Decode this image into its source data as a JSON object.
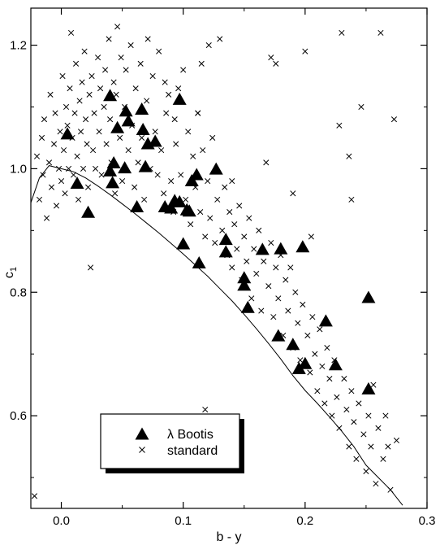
{
  "chart_data": {
    "type": "scatter",
    "xlabel": "b - y",
    "ylabel": "c",
    "ylabel_subscript": "1",
    "xlim": [
      -0.025,
      0.3
    ],
    "ylim": [
      0.45,
      1.26
    ],
    "x_ticks": [
      0.0,
      0.1,
      0.2,
      0.3
    ],
    "x_tick_labels": [
      "0.0",
      "0.1",
      "0.2",
      "0.3"
    ],
    "y_ticks": [
      0.6,
      0.8,
      1.0,
      1.2
    ],
    "y_tick_labels": [
      "0.6",
      "0.8",
      "1.0",
      "1.2"
    ],
    "grid": false,
    "legend_position": "bottom-left",
    "series": [
      {
        "name": "λ Bootis",
        "marker": "triangle",
        "color": "#000000",
        "points": [
          [
            0.005,
            1.055
          ],
          [
            0.013,
            0.975
          ],
          [
            0.022,
            0.928
          ],
          [
            0.04,
            1.117
          ],
          [
            0.04,
            0.995
          ],
          [
            0.042,
            0.976
          ],
          [
            0.043,
            1.008
          ],
          [
            0.046,
            1.065
          ],
          [
            0.052,
            1.0
          ],
          [
            0.053,
            1.092
          ],
          [
            0.055,
            1.076
          ],
          [
            0.062,
            0.937
          ],
          [
            0.066,
            1.095
          ],
          [
            0.067,
            1.062
          ],
          [
            0.069,
            1.002
          ],
          [
            0.071,
            1.039
          ],
          [
            0.077,
            1.043
          ],
          [
            0.085,
            0.937
          ],
          [
            0.09,
            0.935
          ],
          [
            0.093,
            0.947
          ],
          [
            0.097,
            0.945
          ],
          [
            0.097,
            1.111
          ],
          [
            0.1,
            0.877
          ],
          [
            0.103,
            0.932
          ],
          [
            0.105,
            0.93
          ],
          [
            0.107,
            0.979
          ],
          [
            0.111,
            0.989
          ],
          [
            0.113,
            0.846
          ],
          [
            0.127,
            0.998
          ],
          [
            0.135,
            0.884
          ],
          [
            0.135,
            0.864
          ],
          [
            0.15,
            0.822
          ],
          [
            0.15,
            0.81
          ],
          [
            0.153,
            0.774
          ],
          [
            0.165,
            0.868
          ],
          [
            0.178,
            0.728
          ],
          [
            0.18,
            0.869
          ],
          [
            0.19,
            0.714
          ],
          [
            0.195,
            0.675
          ],
          [
            0.198,
            0.872
          ],
          [
            0.2,
            0.683
          ],
          [
            0.217,
            0.752
          ],
          [
            0.225,
            0.681
          ],
          [
            0.252,
            0.79
          ],
          [
            0.252,
            0.642
          ]
        ]
      },
      {
        "name": "standard",
        "marker": "x",
        "color": "#000000",
        "points": [
          [
            -0.022,
            0.47
          ],
          [
            -0.02,
            1.02
          ],
          [
            -0.018,
            0.95
          ],
          [
            -0.016,
            1.05
          ],
          [
            -0.015,
            0.99
          ],
          [
            -0.014,
            1.08
          ],
          [
            -0.012,
            0.92
          ],
          [
            -0.01,
            1.01
          ],
          [
            -0.009,
            1.12
          ],
          [
            -0.008,
            0.97
          ],
          [
            -0.006,
            1.04
          ],
          [
            -0.005,
            1.09
          ],
          [
            -0.004,
            0.94
          ],
          [
            -0.002,
            1.0
          ],
          [
            -0.001,
            1.06
          ],
          [
            0.0,
            0.98
          ],
          [
            0.001,
            1.15
          ],
          [
            0.002,
            1.03
          ],
          [
            0.003,
            0.96
          ],
          [
            0.004,
            1.1
          ],
          [
            0.005,
            1.07
          ],
          [
            0.006,
            1.0
          ],
          [
            0.007,
            1.13
          ],
          [
            0.008,
            1.22
          ],
          [
            0.009,
            1.05
          ],
          [
            0.01,
            0.99
          ],
          [
            0.011,
            1.09
          ],
          [
            0.012,
            1.17
          ],
          [
            0.013,
            1.02
          ],
          [
            0.014,
            0.95
          ],
          [
            0.015,
            1.11
          ],
          [
            0.016,
            1.06
          ],
          [
            0.017,
            1.14
          ],
          [
            0.018,
            1.0
          ],
          [
            0.019,
            1.19
          ],
          [
            0.02,
            1.08
          ],
          [
            0.021,
            1.04
          ],
          [
            0.022,
            0.97
          ],
          [
            0.023,
            1.12
          ],
          [
            0.024,
            0.84
          ],
          [
            0.025,
            1.15
          ],
          [
            0.026,
            1.03
          ],
          [
            0.027,
            1.09
          ],
          [
            0.028,
            1.0
          ],
          [
            0.03,
            1.18
          ],
          [
            0.031,
            1.06
          ],
          [
            0.032,
            1.13
          ],
          [
            0.033,
            0.99
          ],
          [
            0.035,
            1.1
          ],
          [
            0.036,
            1.16
          ],
          [
            0.037,
            1.04
          ],
          [
            0.039,
            1.21
          ],
          [
            0.04,
            1.08
          ],
          [
            0.041,
            1.01
          ],
          [
            0.043,
            1.14
          ],
          [
            0.044,
            0.96
          ],
          [
            0.045,
            1.12
          ],
          [
            0.046,
            1.23
          ],
          [
            0.048,
            1.05
          ],
          [
            0.049,
            1.18
          ],
          [
            0.05,
            0.98
          ],
          [
            0.052,
            1.1
          ],
          [
            0.053,
            1.16
          ],
          [
            0.055,
            1.03
          ],
          [
            0.057,
            1.2
          ],
          [
            0.058,
            1.07
          ],
          [
            0.06,
            0.97
          ],
          [
            0.061,
            1.13
          ],
          [
            0.063,
            1.01
          ],
          [
            0.065,
            1.17
          ],
          [
            0.066,
            1.05
          ],
          [
            0.068,
            0.95
          ],
          [
            0.07,
            1.11
          ],
          [
            0.071,
            1.21
          ],
          [
            0.073,
            1.0
          ],
          [
            0.075,
            1.15
          ],
          [
            0.077,
            1.06
          ],
          [
            0.079,
            0.99
          ],
          [
            0.08,
            1.19
          ],
          [
            0.082,
            1.03
          ],
          [
            0.084,
            0.96
          ],
          [
            0.086,
            1.09
          ],
          [
            0.088,
            1.12
          ],
          [
            0.09,
            0.98
          ],
          [
            0.092,
            0.93
          ],
          [
            0.094,
            1.04
          ],
          [
            0.096,
            1.13
          ],
          [
            0.098,
            0.99
          ],
          [
            0.1,
            1.16
          ],
          [
            0.102,
            0.95
          ],
          [
            0.104,
            1.06
          ],
          [
            0.106,
            0.91
          ],
          [
            0.108,
            1.02
          ],
          [
            0.11,
            0.97
          ],
          [
            0.112,
            1.09
          ],
          [
            0.114,
            0.93
          ],
          [
            0.116,
            1.03
          ],
          [
            0.118,
            0.89
          ],
          [
            0.12,
            0.98
          ],
          [
            0.121,
            1.2
          ],
          [
            0.122,
            0.92
          ],
          [
            0.124,
            1.05
          ],
          [
            0.126,
            0.88
          ],
          [
            0.128,
            0.95
          ],
          [
            0.13,
            1.21
          ],
          [
            0.132,
            0.9
          ],
          [
            0.134,
            0.97
          ],
          [
            0.136,
            0.86
          ],
          [
            0.138,
            0.93
          ],
          [
            0.14,
            0.84
          ],
          [
            0.142,
            0.91
          ],
          [
            0.144,
            0.87
          ],
          [
            0.146,
            0.94
          ],
          [
            0.148,
            0.82
          ],
          [
            0.15,
            0.89
          ],
          [
            0.152,
            0.85
          ],
          [
            0.154,
            0.92
          ],
          [
            0.156,
            0.79
          ],
          [
            0.158,
            0.87
          ],
          [
            0.16,
            0.83
          ],
          [
            0.162,
            0.9
          ],
          [
            0.164,
            0.77
          ],
          [
            0.166,
            0.85
          ],
          [
            0.168,
            1.01
          ],
          [
            0.17,
            0.81
          ],
          [
            0.172,
            0.88
          ],
          [
            0.174,
            0.76
          ],
          [
            0.176,
            0.84
          ],
          [
            0.178,
            0.79
          ],
          [
            0.18,
            0.86
          ],
          [
            0.182,
            0.73
          ],
          [
            0.184,
            0.82
          ],
          [
            0.186,
            0.77
          ],
          [
            0.188,
            0.84
          ],
          [
            0.19,
            0.71
          ],
          [
            0.192,
            0.8
          ],
          [
            0.194,
            0.75
          ],
          [
            0.196,
            0.69
          ],
          [
            0.198,
            0.78
          ],
          [
            0.2,
            1.19
          ],
          [
            0.202,
            0.73
          ],
          [
            0.204,
            0.67
          ],
          [
            0.206,
            0.76
          ],
          [
            0.208,
            0.7
          ],
          [
            0.21,
            0.64
          ],
          [
            0.212,
            0.74
          ],
          [
            0.214,
            0.68
          ],
          [
            0.216,
            0.62
          ],
          [
            0.218,
            0.71
          ],
          [
            0.22,
            0.66
          ],
          [
            0.222,
            0.6
          ],
          [
            0.224,
            0.69
          ],
          [
            0.226,
            0.63
          ],
          [
            0.228,
            0.58
          ],
          [
            0.23,
            1.22
          ],
          [
            0.232,
            0.66
          ],
          [
            0.234,
            0.61
          ],
          [
            0.236,
            0.55
          ],
          [
            0.238,
            0.64
          ],
          [
            0.24,
            0.59
          ],
          [
            0.242,
            0.53
          ],
          [
            0.244,
            0.62
          ],
          [
            0.246,
            1.1
          ],
          [
            0.248,
            0.57
          ],
          [
            0.25,
            0.51
          ],
          [
            0.252,
            0.6
          ],
          [
            0.254,
            0.55
          ],
          [
            0.256,
            0.65
          ],
          [
            0.258,
            0.49
          ],
          [
            0.26,
            0.58
          ],
          [
            0.262,
            1.22
          ],
          [
            0.264,
            0.53
          ],
          [
            0.266,
            0.6
          ],
          [
            0.268,
            0.55
          ],
          [
            0.27,
            0.48
          ],
          [
            0.273,
            1.08
          ],
          [
            0.275,
            0.56
          ],
          [
            0.176,
            1.17
          ],
          [
            0.172,
            1.18
          ],
          [
            0.19,
            0.96
          ],
          [
            0.205,
            0.89
          ],
          [
            0.236,
            1.02
          ],
          [
            0.238,
            0.95
          ],
          [
            0.228,
            1.07
          ],
          [
            0.118,
            0.61
          ],
          [
            0.115,
            1.17
          ],
          [
            0.112,
            1.09
          ],
          [
            0.085,
            1.14
          ],
          [
            0.093,
            1.08
          ],
          [
            0.14,
            0.98
          ]
        ]
      }
    ],
    "fit_line": {
      "name": "",
      "points": [
        [
          -0.025,
          0.945
        ],
        [
          -0.018,
          0.985
        ],
        [
          -0.01,
          1.005
        ],
        [
          0.0,
          1.0
        ],
        [
          0.01,
          0.995
        ],
        [
          0.02,
          0.985
        ],
        [
          0.03,
          0.972
        ],
        [
          0.04,
          0.958
        ],
        [
          0.05,
          0.943
        ],
        [
          0.06,
          0.928
        ],
        [
          0.07,
          0.912
        ],
        [
          0.08,
          0.896
        ],
        [
          0.09,
          0.879
        ],
        [
          0.1,
          0.862
        ],
        [
          0.11,
          0.844
        ],
        [
          0.12,
          0.826
        ],
        [
          0.13,
          0.806
        ],
        [
          0.14,
          0.786
        ],
        [
          0.15,
          0.764
        ],
        [
          0.16,
          0.741
        ],
        [
          0.17,
          0.717
        ],
        [
          0.18,
          0.692
        ],
        [
          0.19,
          0.665
        ],
        [
          0.2,
          0.641
        ],
        [
          0.21,
          0.62
        ],
        [
          0.22,
          0.598
        ],
        [
          0.23,
          0.575
        ],
        [
          0.24,
          0.55
        ],
        [
          0.25,
          0.52
        ],
        [
          0.26,
          0.5
        ],
        [
          0.27,
          0.48
        ],
        [
          0.28,
          0.455
        ]
      ]
    }
  },
  "legend": {
    "entries": [
      {
        "label": "λ Bootis",
        "marker": "triangle"
      },
      {
        "label": "standard",
        "marker": "x"
      }
    ]
  }
}
